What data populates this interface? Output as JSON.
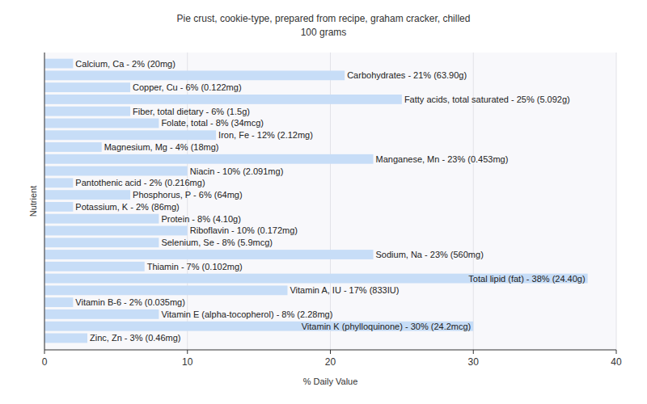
{
  "chart_data": {
    "type": "bar",
    "orientation": "horizontal",
    "title": "Pie crust, cookie-type, prepared from recipe, graham cracker, chilled",
    "subtitle": "100 grams",
    "x_label": "% Daily Value",
    "y_label": "Nutrient",
    "categories": [
      "Calcium, Ca - 2% (20mg)",
      "Carbohydrates - 21% (63.90g)",
      "Copper, Cu - 6% (0.122mg)",
      "Fatty acids, total saturated - 25% (5.092g)",
      "Fiber, total dietary - 6% (1.5g)",
      "Folate, total - 8% (34mcg)",
      "Iron, Fe - 12% (2.12mg)",
      "Magnesium, Mg - 4% (18mg)",
      "Manganese, Mn - 23% (0.453mg)",
      "Niacin - 10% (2.091mg)",
      "Pantothenic acid - 2% (0.216mg)",
      "Phosphorus, P - 6% (64mg)",
      "Potassium, K - 2% (86mg)",
      "Protein - 8% (4.10g)",
      "Riboflavin - 10% (0.172mg)",
      "Selenium, Se - 8% (5.9mcg)",
      "Sodium, Na - 23% (560mg)",
      "Thiamin - 7% (0.102mg)",
      "Total lipid (fat) - 38% (24.40g)",
      "Vitamin A, IU - 17% (833IU)",
      "Vitamin B-6 - 2% (0.035mg)",
      "Vitamin E (alpha-tocopherol) - 8% (2.28mg)",
      "Vitamin K (phylloquinone) - 30% (24.2mcg)",
      "Zinc, Zn - 3% (0.46mg)"
    ],
    "values": [
      2,
      21,
      6,
      25,
      6,
      8,
      12,
      4,
      23,
      10,
      2,
      6,
      2,
      8,
      10,
      8,
      23,
      7,
      38,
      17,
      2,
      8,
      30,
      3
    ],
    "color": "#c7ddf7",
    "xlim": [
      0,
      40
    ],
    "xticks": [
      0,
      10,
      20,
      30,
      40
    ],
    "grid": true
  }
}
